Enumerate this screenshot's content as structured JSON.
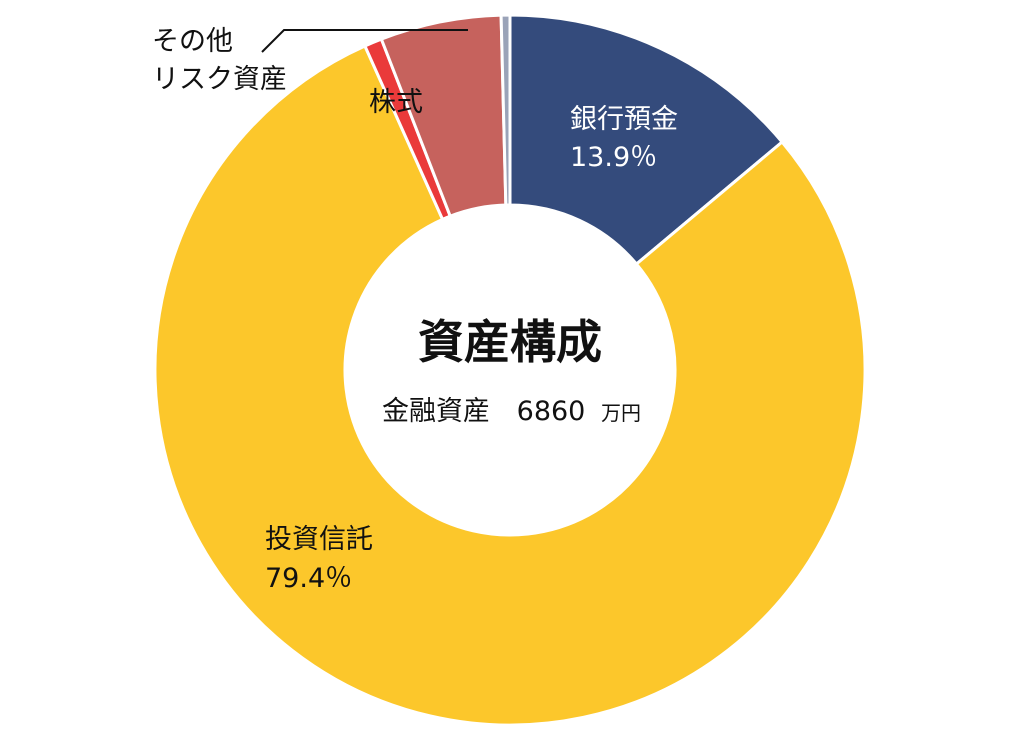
{
  "chart_data": {
    "type": "pie",
    "title": "資産構成",
    "subtitle": "金融資産",
    "total": "6860",
    "total_unit": "万円",
    "slices": [
      {
        "label": "銀行預金",
        "value": 13.9,
        "value_label": "13.9％",
        "color": "#344b7c"
      },
      {
        "label": "投資信託",
        "value": 79.4,
        "value_label": "79.4％",
        "color": "#fcc72b"
      },
      {
        "label": "その他リスク資産",
        "value": 0.8,
        "color": "#ea3a3a"
      },
      {
        "label": "株式",
        "value": 5.5,
        "color": "#c6625d"
      },
      {
        "label": "",
        "value": 0.4,
        "color": "#9aa3b8"
      }
    ],
    "labels": {
      "bank": {
        "name": "銀行預金",
        "value": "13.9％"
      },
      "funds": {
        "name": "投資信託",
        "value": "79.4％"
      },
      "stocks": {
        "name": "株式"
      },
      "other": {
        "line1": "その他",
        "line2": "リスク資産"
      }
    }
  }
}
